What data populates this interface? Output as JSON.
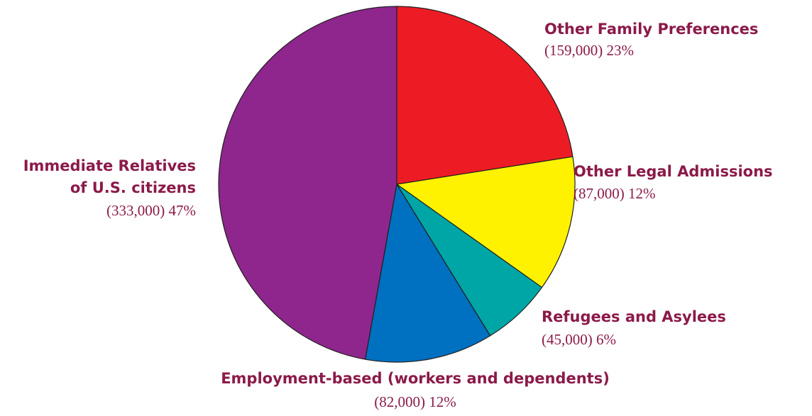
{
  "chart_data": {
    "type": "pie",
    "start_angle_deg": 0,
    "direction": "clockwise",
    "slices": [
      {
        "name_lines": [
          "Other Family Preferences"
        ],
        "value": 159000,
        "value_label": "(159,000) 23%",
        "color": "#ed1c24"
      },
      {
        "name_lines": [
          "Other Legal Admissions"
        ],
        "value": 87000,
        "value_label": "(87,000) 12%",
        "color": "#fff200"
      },
      {
        "name_lines": [
          "Refugees and Asylees"
        ],
        "value": 45000,
        "value_label": "(45,000) 6%",
        "color": "#00a6a6"
      },
      {
        "name_lines": [
          "Employment-based (workers and dependents)"
        ],
        "value": 82000,
        "value_label": "(82,000) 12%",
        "color": "#0070c0"
      },
      {
        "name_lines": [
          "Immediate Relatives",
          "of U.S. citizens"
        ],
        "value": 333000,
        "value_label": "(333,000) 47%",
        "color": "#8e268e"
      }
    ],
    "edge_color": "#231f20",
    "label_color": "#8b1a4a"
  }
}
